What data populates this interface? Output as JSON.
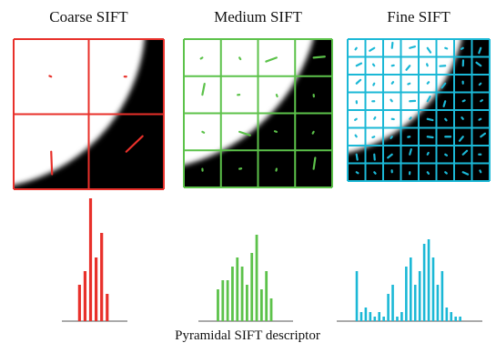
{
  "panels": [
    {
      "title": "Coarse SIFT",
      "color": "#e8302a",
      "histogram": [
        40,
        55,
        135,
        70,
        97,
        30
      ]
    },
    {
      "title": "Medium SIFT",
      "color": "#5cc24a",
      "histogram": [
        35,
        45,
        45,
        60,
        70,
        60,
        40,
        75,
        95,
        35,
        55,
        25
      ]
    },
    {
      "title": "Fine SIFT",
      "color": "#1bb8d6",
      "histogram": [
        55,
        10,
        15,
        10,
        5,
        10,
        5,
        30,
        40,
        5,
        10,
        60,
        70,
        40,
        55,
        85,
        90,
        70,
        40,
        55,
        15,
        10,
        5,
        5
      ]
    }
  ],
  "caption": "Pyramidal SIFT descriptor"
}
